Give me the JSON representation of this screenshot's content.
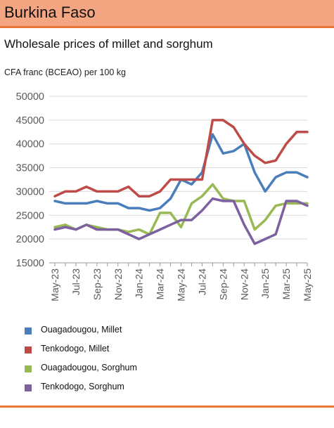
{
  "header": {
    "title": "Burkina Faso"
  },
  "chart_data": {
    "type": "line",
    "title": "Wholesale prices of millet and sorghum",
    "ylabel": "CFA franc (BCEAO) per 100 kg",
    "xlabel": "",
    "ylim": [
      15000,
      50000
    ],
    "yticks": [
      15000,
      20000,
      25000,
      30000,
      35000,
      40000,
      45000,
      50000
    ],
    "grid": "horizontal",
    "legend_position": "bottom",
    "x": [
      "May-23",
      "Jun-23",
      "Jul-23",
      "Aug-23",
      "Sep-23",
      "Oct-23",
      "Nov-23",
      "Dec-23",
      "Jan-24",
      "Feb-24",
      "Mar-24",
      "Apr-24",
      "May-24",
      "Jun-24",
      "Jul-24",
      "Aug-24",
      "Sep-24",
      "Oct-24",
      "Nov-24",
      "Dec-24",
      "Jan-25",
      "Feb-25",
      "Mar-25",
      "Apr-25",
      "May-25"
    ],
    "x_tick_labels": [
      "May-23",
      "Jul-23",
      "Sep-23",
      "Nov-23",
      "Jan-24",
      "Mar-24",
      "May-24",
      "Jul-24",
      "Sep-24",
      "Nov-24",
      "Jan-25",
      "Mar-25",
      "May-25"
    ],
    "series": [
      {
        "name": "Ouagadougou, Millet",
        "color": "#4a7ebb",
        "values": [
          28000,
          27500,
          27500,
          27500,
          28000,
          27500,
          27500,
          26500,
          26500,
          26000,
          26500,
          28500,
          32500,
          31500,
          34000,
          42000,
          38000,
          38500,
          40000,
          34000,
          30000,
          33000,
          34000,
          34000,
          33000
        ]
      },
      {
        "name": "Tenkodogo, Millet",
        "color": "#be4b48",
        "values": [
          29000,
          30000,
          30000,
          31000,
          30000,
          30000,
          30000,
          31000,
          29000,
          29000,
          30000,
          32500,
          32500,
          32500,
          32500,
          45000,
          45000,
          43500,
          40000,
          37500,
          36000,
          36500,
          40000,
          42500,
          42500
        ]
      },
      {
        "name": "Ouagadougou, Sorghum",
        "color": "#98b954",
        "values": [
          22500,
          23000,
          22000,
          23000,
          22500,
          22000,
          22000,
          21500,
          22000,
          21000,
          25500,
          25500,
          22500,
          27500,
          29000,
          31500,
          28500,
          28000,
          28000,
          22000,
          24000,
          27000,
          27500,
          27500,
          27500
        ]
      },
      {
        "name": "Tenkodogo, Sorghum",
        "color": "#7d60a0",
        "values": [
          22000,
          22500,
          22000,
          23000,
          22000,
          22000,
          22000,
          21000,
          20000,
          21000,
          22000,
          23000,
          24000,
          24000,
          26000,
          28500,
          28000,
          28000,
          23000,
          19000,
          20000,
          21000,
          28000,
          28000,
          27000
        ]
      }
    ]
  }
}
